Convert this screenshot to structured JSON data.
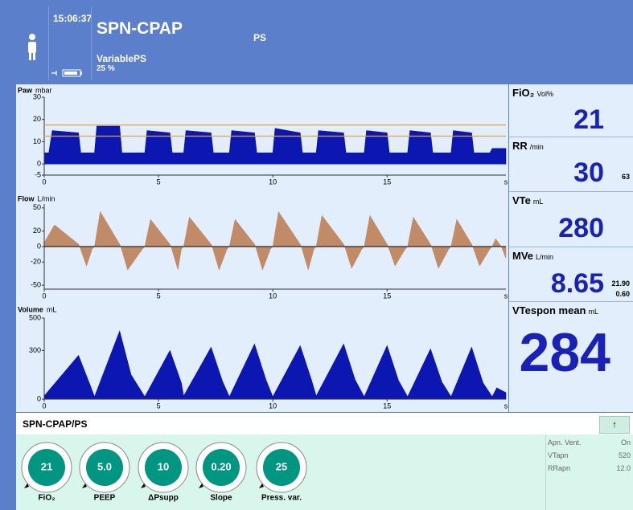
{
  "header": {
    "time": "15:06:37",
    "mode": "SPN-CPAP",
    "submode": "PS",
    "mode_detail": "VariablePS",
    "detail_value": "25 %"
  },
  "chart_data": [
    {
      "type": "area",
      "title": "Paw",
      "unit": "mbar",
      "color": "#0c16b0",
      "threshold_color": "#e8a23a",
      "thresholds": [
        17.5,
        12.5
      ],
      "xlim": [
        0,
        20.2
      ],
      "xticks": [
        0,
        5,
        10,
        15
      ],
      "xlabel": "s",
      "ylim": [
        -5,
        30
      ],
      "yticks": [
        -5,
        0,
        10,
        20,
        30
      ],
      "x": [
        0,
        0.2,
        0.35,
        1.5,
        1.6,
        2.2,
        2.3,
        3.3,
        3.4,
        4.4,
        4.5,
        5.5,
        5.6,
        6.1,
        6.2,
        7.3,
        7.4,
        8.1,
        8.2,
        9.2,
        9.3,
        10.0,
        10.1,
        11.2,
        11.3,
        11.9,
        12.0,
        13.1,
        13.2,
        14.0,
        14.1,
        15.0,
        15.1,
        15.9,
        16.0,
        16.9,
        17.0,
        17.8,
        17.9,
        18.7,
        18.8,
        19.5,
        19.6,
        20.2
      ],
      "values": [
        5,
        5,
        15,
        14,
        5,
        5,
        17,
        17,
        5,
        5,
        15,
        14,
        5,
        5,
        15,
        14,
        5,
        5,
        15,
        14,
        5,
        5,
        16,
        14,
        5,
        5,
        15,
        14,
        5,
        5,
        15,
        14,
        5,
        5,
        15,
        14,
        5,
        5,
        15,
        14,
        5,
        5,
        7,
        7
      ]
    },
    {
      "type": "area",
      "title": "Flow",
      "unit": "L/min",
      "color": "#c08b66",
      "zero_line": true,
      "xlim": [
        0,
        20.2
      ],
      "xticks": [
        0,
        5,
        10,
        15
      ],
      "xlabel": "s",
      "ylim": [
        -55,
        55
      ],
      "yticks": [
        -50,
        -20,
        0,
        20,
        50
      ],
      "x": [
        0,
        0.45,
        1.5,
        1.55,
        1.85,
        2.1,
        2.2,
        2.45,
        3.3,
        3.35,
        3.65,
        4.3,
        4.4,
        4.65,
        5.5,
        5.55,
        5.85,
        6.0,
        6.1,
        6.35,
        7.3,
        7.35,
        7.65,
        8.0,
        8.1,
        8.35,
        9.2,
        9.25,
        9.55,
        9.9,
        10.0,
        10.25,
        11.2,
        11.25,
        11.55,
        11.8,
        11.9,
        12.15,
        13.1,
        13.15,
        13.45,
        13.9,
        14.0,
        14.25,
        15.0,
        15.05,
        15.35,
        15.8,
        15.9,
        16.15,
        16.9,
        16.95,
        17.25,
        17.7,
        17.8,
        18.05,
        18.7,
        18.75,
        19.05,
        19.5,
        19.6,
        19.75,
        20.0,
        20.2
      ],
      "values": [
        5,
        28,
        3,
        0,
        -25,
        -3,
        0,
        45,
        3,
        0,
        -30,
        -3,
        0,
        35,
        3,
        0,
        -30,
        -3,
        0,
        38,
        3,
        0,
        -30,
        -3,
        0,
        35,
        3,
        0,
        -30,
        -3,
        0,
        45,
        3,
        0,
        -30,
        -3,
        0,
        40,
        3,
        0,
        -28,
        -3,
        0,
        40,
        3,
        0,
        -25,
        -3,
        0,
        38,
        3,
        0,
        -28,
        -3,
        0,
        35,
        3,
        0,
        -25,
        -3,
        0,
        10,
        0,
        -15
      ]
    },
    {
      "type": "area",
      "title": "Volume",
      "unit": "mL",
      "color": "#0c16b0",
      "xlim": [
        0,
        20.2
      ],
      "xticks": [
        0,
        5,
        10,
        15
      ],
      "xlabel": "s",
      "ylim": [
        0,
        500
      ],
      "yticks": [
        0,
        300,
        500
      ],
      "x": [
        0,
        1.5,
        2.0,
        2.2,
        3.3,
        3.8,
        4.4,
        5.5,
        6.0,
        6.1,
        7.3,
        7.8,
        8.1,
        9.2,
        9.7,
        10.0,
        11.2,
        11.7,
        11.9,
        13.1,
        13.6,
        14.0,
        15.0,
        15.5,
        15.9,
        16.9,
        17.4,
        17.8,
        18.7,
        19.2,
        19.6,
        19.8,
        20.2
      ],
      "values": [
        20,
        270,
        90,
        15,
        420,
        150,
        15,
        300,
        100,
        20,
        320,
        110,
        15,
        340,
        120,
        15,
        330,
        115,
        20,
        340,
        120,
        15,
        330,
        115,
        15,
        310,
        105,
        15,
        320,
        100,
        15,
        70,
        40
      ]
    }
  ],
  "parameters": [
    {
      "name": "FiO₂",
      "unit": "Vol%",
      "value": "21"
    },
    {
      "name": "RR",
      "unit": "/min",
      "value": "30",
      "extra": [
        "63"
      ]
    },
    {
      "name": "VTe",
      "unit": "mL",
      "value": "280"
    },
    {
      "name": "MVe",
      "unit": "L/min",
      "value": "8.65",
      "extra": [
        "21.90",
        "0.60"
      ]
    },
    {
      "name": "VTespon mean",
      "unit": "mL",
      "value": "284"
    }
  ],
  "settings": {
    "title": "SPN-CPAP/PS",
    "button": "↑",
    "knobs": [
      {
        "value": "21",
        "label": "FiO₂"
      },
      {
        "value": "5.0",
        "label": "PEEP"
      },
      {
        "value": "10",
        "label": "ΔPsupp"
      },
      {
        "value": "0.20",
        "label": "Slope"
      },
      {
        "value": "25",
        "label": "Press. var."
      }
    ],
    "apnea": [
      {
        "label": "Apn. Vent.",
        "value": "On"
      },
      {
        "label": "VTapn",
        "value": "520"
      },
      {
        "label": "RRapn",
        "value": "12.0"
      }
    ]
  }
}
